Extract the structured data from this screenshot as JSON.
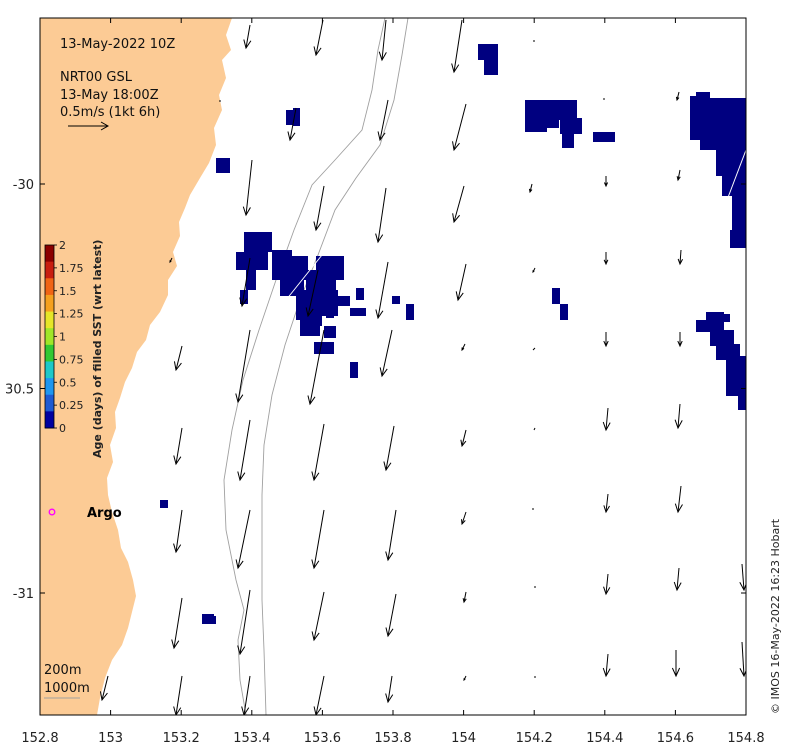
{
  "header": {
    "date": "13-May-2022 10Z",
    "product": "NRT00 GSL",
    "valid": "13-May 18:00Z",
    "scale": "0.5m/s (1kt 6h)"
  },
  "x_ticks": [
    {
      "value": 152.8,
      "label": "152.8"
    },
    {
      "value": 153.0,
      "label": "153"
    },
    {
      "value": 153.2,
      "label": "153.2"
    },
    {
      "value": 153.4,
      "label": "153.4"
    },
    {
      "value": 153.6,
      "label": "153.6"
    },
    {
      "value": 153.8,
      "label": "153.8"
    },
    {
      "value": 154.0,
      "label": "154"
    },
    {
      "value": 154.2,
      "label": "154.2"
    },
    {
      "value": 154.4,
      "label": "154.4"
    },
    {
      "value": 154.6,
      "label": "154.6"
    },
    {
      "value": 154.8,
      "label": "154.8"
    }
  ],
  "y_ticks": [
    {
      "value": -30.0,
      "label": "-30"
    },
    {
      "value": -30.5,
      "label": "30.5"
    },
    {
      "value": -31.0,
      "label": "-31"
    }
  ],
  "colorbar": {
    "title": "Age (days) of filled SST (wrt latest)",
    "ticks": [
      "2",
      "1.75",
      "1.5",
      "1.25",
      "1",
      "0.75",
      "0.5",
      "0.25",
      "0"
    ],
    "colors": [
      "#8b0000",
      "#c81e0f",
      "#f06414",
      "#f5a01e",
      "#e6e628",
      "#a0e628",
      "#32c832",
      "#1ec8c8",
      "#1e96f0",
      "#1e5ad2",
      "#0000a0"
    ]
  },
  "argo": {
    "label": "Argo",
    "color": "#ff00ff"
  },
  "isobaths": {
    "shallow": "200m",
    "deep": "1000m"
  },
  "credit": "© IMOS 16-May-2022 16:23 Hobart",
  "colors": {
    "land": "#fccb95",
    "sst": "#000080",
    "isobath": "#a0a0a0",
    "arrow": "#000000"
  }
}
